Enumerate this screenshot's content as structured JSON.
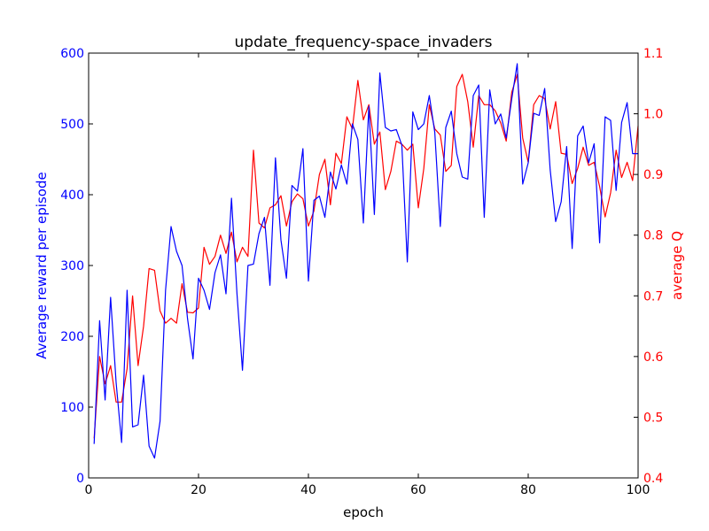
{
  "chart_data": {
    "type": "line",
    "title": "update_frequency-space_invaders",
    "xlabel": "epoch",
    "ylabel_left": "Average reward per episode",
    "ylabel_right": "average Q",
    "xlim": [
      0,
      100
    ],
    "ylim_left": [
      0,
      600
    ],
    "ylim_right": [
      0.4,
      1.1
    ],
    "x_ticks": [
      0,
      20,
      40,
      60,
      80,
      100
    ],
    "y_ticks_left": [
      0,
      100,
      200,
      300,
      400,
      500,
      600
    ],
    "y_ticks_right": [
      0.4,
      0.5,
      0.6,
      0.7,
      0.8,
      0.9,
      1.0,
      1.1
    ],
    "grid": false,
    "legend": "none",
    "colors": {
      "reward": "#0000ff",
      "q": "#ff0000",
      "axis": "#000000"
    },
    "series": [
      {
        "axis": "left",
        "color": "#0000ff",
        "x": [
          1,
          2,
          3,
          4,
          5,
          6,
          7,
          8,
          9,
          10,
          11,
          12,
          13,
          14,
          15,
          16,
          17,
          18,
          19,
          20,
          21,
          22,
          23,
          24,
          25,
          26,
          27,
          28,
          29,
          30,
          31,
          32,
          33,
          34,
          35,
          36,
          37,
          38,
          39,
          40,
          41,
          42,
          43,
          44,
          45,
          46,
          47,
          48,
          49,
          50,
          51,
          52,
          53,
          54,
          55,
          56,
          57,
          58,
          59,
          60,
          61,
          62,
          63,
          64,
          65,
          66,
          67,
          68,
          69,
          70,
          71,
          72,
          73,
          74,
          75,
          76,
          77,
          78,
          79,
          80,
          81,
          82,
          83,
          84,
          85,
          86,
          87,
          88,
          89,
          90,
          91,
          92,
          93,
          94,
          95,
          96,
          97,
          98,
          99,
          100
        ],
        "values": [
          48,
          222,
          110,
          255,
          135,
          50,
          265,
          72,
          75,
          145,
          45,
          28,
          80,
          265,
          355,
          320,
          300,
          225,
          168,
          282,
          265,
          238,
          290,
          315,
          260,
          395,
          260,
          152,
          300,
          302,
          345,
          368,
          272,
          452,
          336,
          282,
          413,
          405,
          465,
          278,
          392,
          398,
          368,
          432,
          408,
          442,
          415,
          500,
          478,
          360,
          525,
          372,
          572,
          495,
          490,
          492,
          470,
          305,
          517,
          492,
          500,
          540,
          488,
          355,
          495,
          518,
          458,
          425,
          422,
          540,
          555,
          368,
          548,
          500,
          514,
          480,
          535,
          585,
          415,
          445,
          515,
          512,
          550,
          435,
          362,
          390,
          468,
          324,
          483,
          497,
          445,
          472,
          332,
          510,
          505,
          406,
          502,
          530,
          458,
          458
        ]
      },
      {
        "axis": "right",
        "color": "#ff0000",
        "x": [
          1,
          2,
          3,
          4,
          5,
          6,
          7,
          8,
          9,
          10,
          11,
          12,
          13,
          14,
          15,
          16,
          17,
          18,
          19,
          20,
          21,
          22,
          23,
          24,
          25,
          26,
          27,
          28,
          29,
          30,
          31,
          32,
          33,
          34,
          35,
          36,
          37,
          38,
          39,
          40,
          41,
          42,
          43,
          44,
          45,
          46,
          47,
          48,
          49,
          50,
          51,
          52,
          53,
          54,
          55,
          56,
          57,
          58,
          59,
          60,
          61,
          62,
          63,
          64,
          65,
          66,
          67,
          68,
          69,
          70,
          71,
          72,
          73,
          74,
          75,
          76,
          77,
          78,
          79,
          80,
          81,
          82,
          83,
          84,
          85,
          86,
          87,
          88,
          89,
          90,
          91,
          92,
          93,
          94,
          95,
          96,
          97,
          98,
          99,
          100
        ],
        "values": [
          0.465,
          0.6,
          0.555,
          0.585,
          0.525,
          0.525,
          0.58,
          0.7,
          0.585,
          0.65,
          0.745,
          0.742,
          0.675,
          0.655,
          0.663,
          0.655,
          0.72,
          0.673,
          0.672,
          0.68,
          0.78,
          0.752,
          0.765,
          0.8,
          0.77,
          0.805,
          0.756,
          0.78,
          0.765,
          0.94,
          0.82,
          0.812,
          0.845,
          0.85,
          0.865,
          0.815,
          0.855,
          0.868,
          0.86,
          0.815,
          0.84,
          0.9,
          0.925,
          0.85,
          0.935,
          0.918,
          0.995,
          0.975,
          1.055,
          0.99,
          1.015,
          0.95,
          0.97,
          0.875,
          0.905,
          0.955,
          0.95,
          0.94,
          0.95,
          0.845,
          0.91,
          1.015,
          0.975,
          0.965,
          0.905,
          0.915,
          1.045,
          1.065,
          1.02,
          0.945,
          1.03,
          1.015,
          1.015,
          1.005,
          0.985,
          0.955,
          1.035,
          1.065,
          0.96,
          0.92,
          1.015,
          1.03,
          1.025,
          0.975,
          1.02,
          0.935,
          0.933,
          0.885,
          0.91,
          0.945,
          0.915,
          0.92,
          0.88,
          0.83,
          0.87,
          0.94,
          0.895,
          0.92,
          0.89,
          0.98
        ]
      }
    ]
  }
}
